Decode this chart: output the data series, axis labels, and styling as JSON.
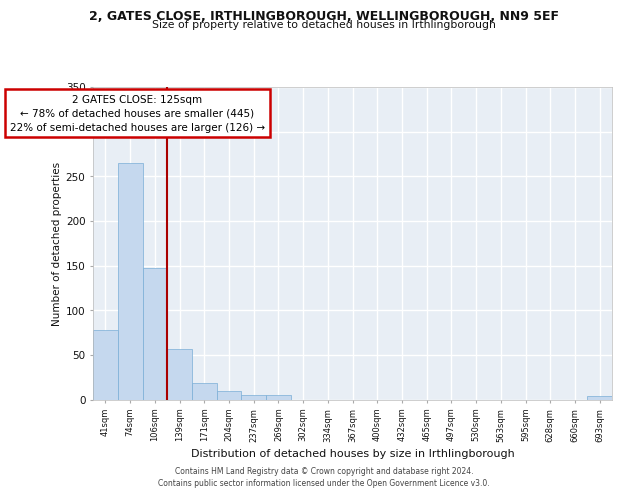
{
  "title": "2, GATES CLOSE, IRTHLINGBOROUGH, WELLINGBOROUGH, NN9 5EF",
  "subtitle": "Size of property relative to detached houses in Irthlingborough",
  "xlabel": "Distribution of detached houses by size in Irthlingborough",
  "ylabel": "Number of detached properties",
  "footer_line1": "Contains HM Land Registry data © Crown copyright and database right 2024.",
  "footer_line2": "Contains public sector information licensed under the Open Government Licence v3.0.",
  "bar_labels": [
    "41sqm",
    "74sqm",
    "106sqm",
    "139sqm",
    "171sqm",
    "204sqm",
    "237sqm",
    "269sqm",
    "302sqm",
    "334sqm",
    "367sqm",
    "400sqm",
    "432sqm",
    "465sqm",
    "497sqm",
    "530sqm",
    "563sqm",
    "595sqm",
    "628sqm",
    "660sqm",
    "693sqm"
  ],
  "bar_values": [
    78,
    265,
    147,
    57,
    19,
    10,
    5,
    5,
    0,
    0,
    0,
    0,
    0,
    0,
    0,
    0,
    0,
    0,
    0,
    0,
    4
  ],
  "bar_color": "#c5d8ee",
  "bar_edge_color": "#7aaed6",
  "ylim": [
    0,
    350
  ],
  "yticks": [
    0,
    50,
    100,
    150,
    200,
    250,
    300,
    350
  ],
  "red_line_x": 2.5,
  "annotation_line1": "2 GATES CLOSE: 125sqm",
  "annotation_line2": "← 78% of detached houses are smaller (445)",
  "annotation_line3": "22% of semi-detached houses are larger (126) →",
  "annot_edge_color": "#cc0000",
  "bg_color": "#e8eef5",
  "grid_color": "#ffffff"
}
